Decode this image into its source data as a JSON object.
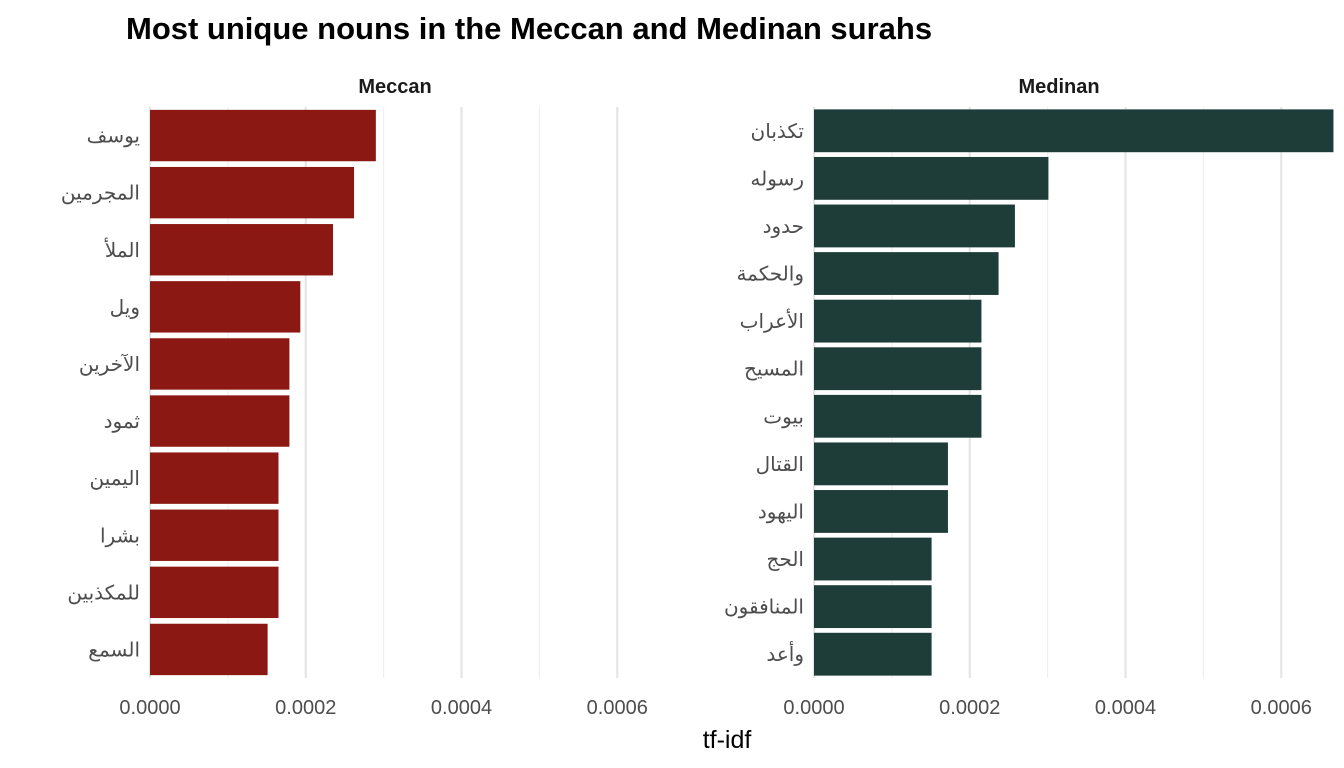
{
  "chart_data": {
    "type": "bar",
    "title": "Most unique nouns in the Meccan and Medinan surahs",
    "xlabel": "tf-idf",
    "ylabel": "",
    "orientation": "horizontal",
    "grid": true,
    "legend": "none",
    "xlim": [
      0,
      0.00066
    ],
    "xticks": [
      "0.0000",
      "0.0002",
      "0.0004",
      "0.0006"
    ],
    "facets": [
      {
        "label": "Meccan",
        "color": "#8b1812",
        "categories": [
          "يوسف",
          "المجرمين",
          "الملأ",
          "ويل",
          "الآخرين",
          "ثمود",
          "اليمين",
          "بشرا",
          "للمكذبين",
          "السمع"
        ],
        "values": [
          0.00029,
          0.000262,
          0.000235,
          0.000193,
          0.000179,
          0.000179,
          0.000165,
          0.000165,
          0.000165,
          0.000151
        ]
      },
      {
        "label": "Medinan",
        "color": "#1f3d38",
        "categories": [
          "تكذبان",
          "رسوله",
          "حدود",
          "والحكمة",
          "الأعراب",
          "المسيح",
          "بيوت",
          "القتال",
          "اليهود",
          "الحج",
          "المنافقون",
          "وأعد"
        ],
        "values": [
          0.000667,
          0.000301,
          0.000258,
          0.000237,
          0.000215,
          0.000215,
          0.000215,
          0.000172,
          0.000172,
          0.000151,
          0.000151,
          0.000151
        ]
      }
    ]
  }
}
